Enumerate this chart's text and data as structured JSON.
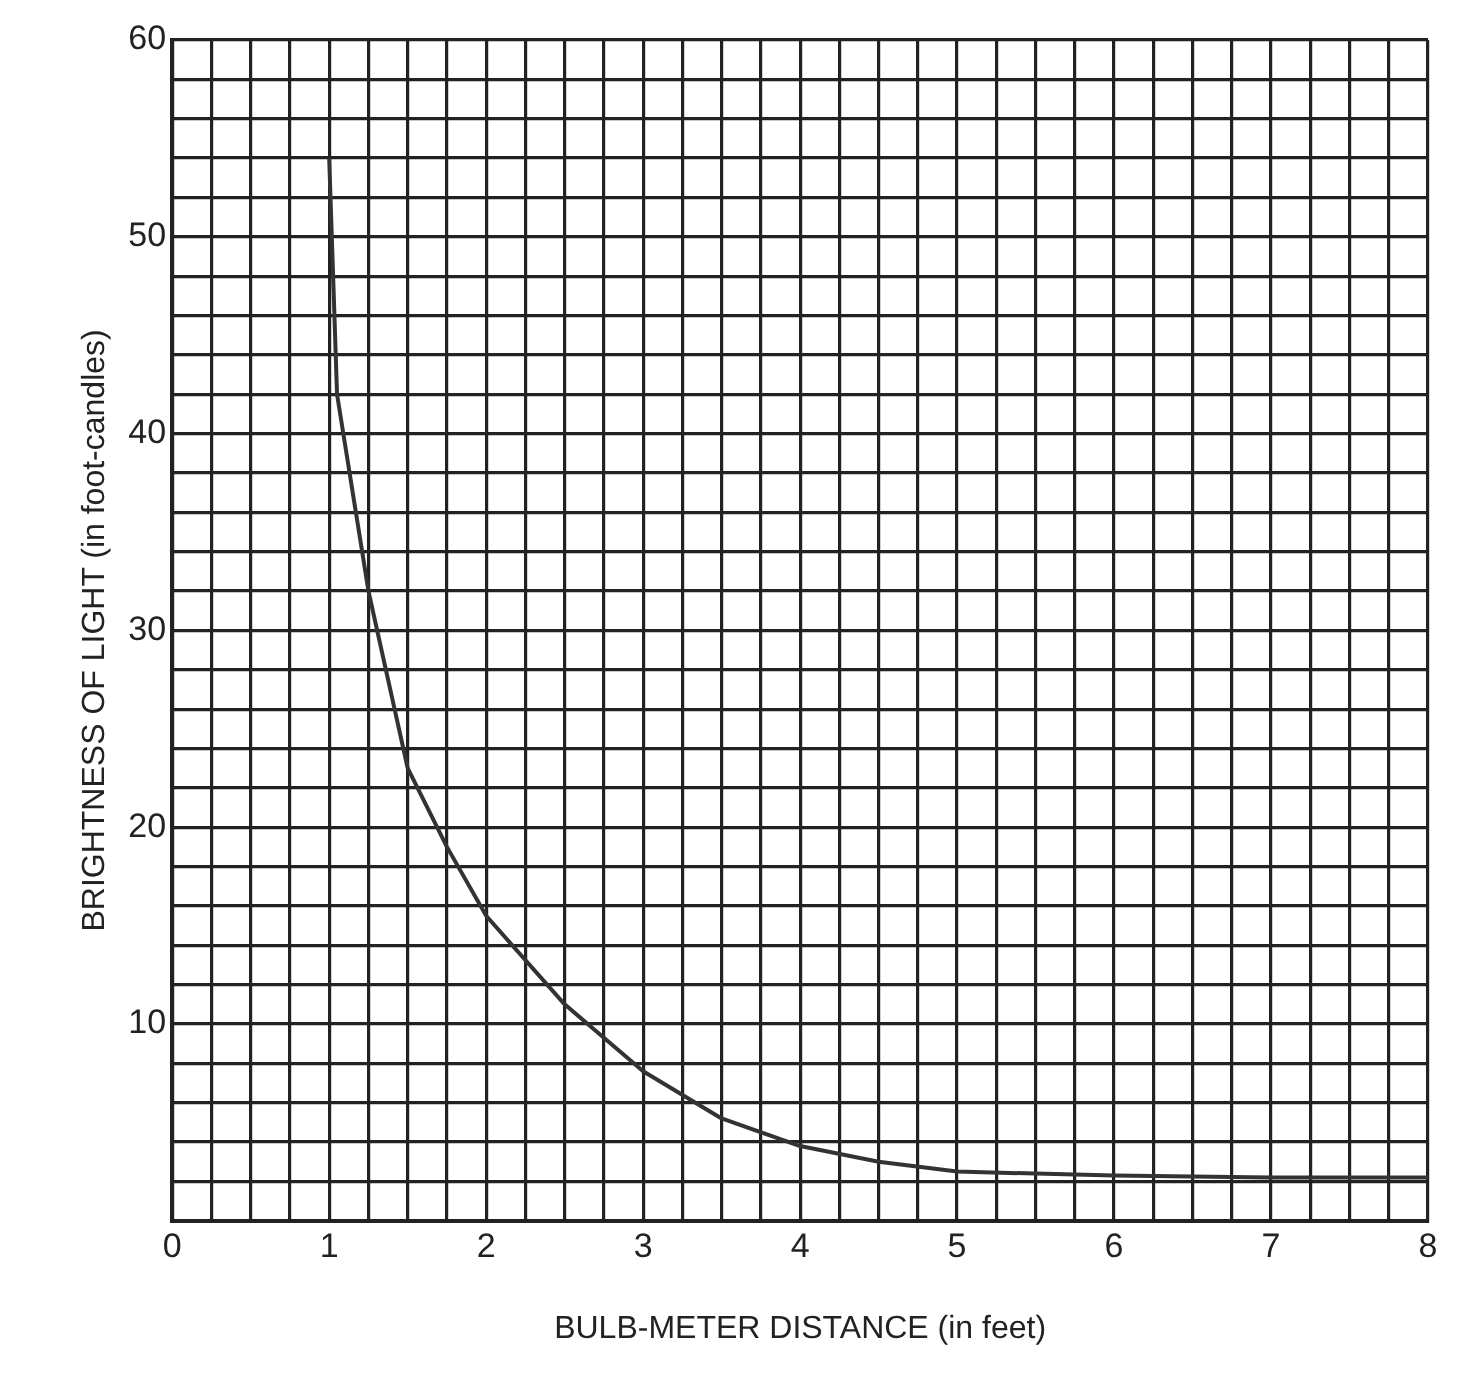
{
  "chart_data": {
    "type": "line",
    "xlabel": "BULB-METER DISTANCE (in feet)",
    "ylabel": "BRIGHTNESS OF LIGHT (in foot-candles)",
    "x": [
      1,
      1.05,
      1.25,
      1.5,
      1.75,
      2,
      2.5,
      3,
      3.5,
      4,
      4.5,
      5,
      6,
      7,
      8
    ],
    "series": [
      {
        "color": "#333333",
        "values": [
          54,
          42,
          32,
          23,
          19,
          15.5,
          11,
          7.6,
          5.2,
          3.8,
          3,
          2.5,
          2.3,
          2.2,
          2.2
        ]
      }
    ],
    "xlim": [
      0,
      8
    ],
    "ylim": [
      0,
      60
    ],
    "xticks": [
      0,
      {
        "value": 0.25,
        "label": null
      },
      {
        "value": 0.5,
        "label": null
      },
      {
        "value": 0.75,
        "label": null
      },
      1,
      {
        "value": 1.25,
        "label": null
      },
      {
        "value": 1.5,
        "label": null
      },
      {
        "value": 1.75,
        "label": null
      },
      2,
      {
        "value": 2.25,
        "label": null
      },
      {
        "value": 2.5,
        "label": null
      },
      {
        "value": 2.75,
        "label": null
      },
      3,
      {
        "value": 3.25,
        "label": null
      },
      {
        "value": 3.5,
        "label": null
      },
      {
        "value": 3.75,
        "label": null
      },
      4,
      {
        "value": 4.25,
        "label": null
      },
      {
        "value": 4.5,
        "label": null
      },
      {
        "value": 4.75,
        "label": null
      },
      5,
      {
        "value": 5.25,
        "label": null
      },
      {
        "value": 5.5,
        "label": null
      },
      {
        "value": 5.75,
        "label": null
      },
      6,
      {
        "value": 6.25,
        "label": null
      },
      {
        "value": 6.5,
        "label": null
      },
      {
        "value": 6.75,
        "label": null
      },
      7,
      {
        "value": 7.25,
        "label": null
      },
      {
        "value": 7.5,
        "label": null
      },
      {
        "value": 7.75,
        "label": null
      },
      8
    ],
    "yticks": [
      {
        "value": 0,
        "label": null
      },
      {
        "value": 2,
        "label": null
      },
      {
        "value": 4,
        "label": null
      },
      {
        "value": 6,
        "label": null
      },
      {
        "value": 8,
        "label": null
      },
      10,
      {
        "value": 12,
        "label": null
      },
      {
        "value": 14,
        "label": null
      },
      {
        "value": 16,
        "label": null
      },
      {
        "value": 18,
        "label": null
      },
      20,
      {
        "value": 22,
        "label": null
      },
      {
        "value": 24,
        "label": null
      },
      {
        "value": 26,
        "label": null
      },
      {
        "value": 28,
        "label": null
      },
      30,
      {
        "value": 32,
        "label": null
      },
      {
        "value": 34,
        "label": null
      },
      {
        "value": 36,
        "label": null
      },
      {
        "value": 38,
        "label": null
      },
      40,
      {
        "value": 42,
        "label": null
      },
      {
        "value": 44,
        "label": null
      },
      {
        "value": 46,
        "label": null
      },
      {
        "value": 48,
        "label": null
      },
      50,
      {
        "value": 52,
        "label": null
      },
      {
        "value": 54,
        "label": null
      },
      {
        "value": 56,
        "label": null
      },
      {
        "value": 58,
        "label": null
      },
      60
    ],
    "grid": true,
    "marker": "none",
    "line_style": "solid"
  }
}
